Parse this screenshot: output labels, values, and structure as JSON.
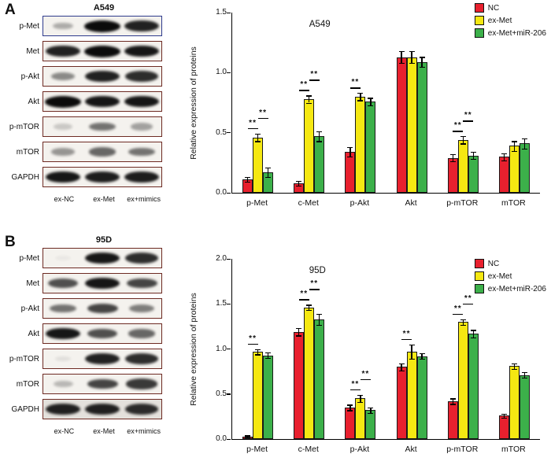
{
  "figure": {
    "panels": [
      {
        "id": "A",
        "label": "A",
        "blot_title": "A549",
        "lane_labels": [
          "ex-NC",
          "ex-Met",
          "ex+mimics"
        ],
        "blots": [
          {
            "protein": "p-Met",
            "border": "#2e3a8c",
            "bands": [
              0.3,
              1.0,
              0.9
            ]
          },
          {
            "protein": "Met",
            "border": "#6d2a22",
            "bands": [
              0.9,
              1.0,
              0.95
            ]
          },
          {
            "protein": "p-Akt",
            "border": "#6d2a22",
            "bands": [
              0.45,
              0.9,
              0.85
            ]
          },
          {
            "protein": "Akt",
            "border": "#6d2a22",
            "bands": [
              1.0,
              0.95,
              0.95
            ]
          },
          {
            "protein": "p-mTOR",
            "border": "#6d2a22",
            "bands": [
              0.18,
              0.55,
              0.35
            ]
          },
          {
            "protein": "mTOR",
            "border": "#6d2a22",
            "bands": [
              0.4,
              0.6,
              0.55
            ]
          },
          {
            "protein": "GAPDH",
            "border": "#6d2a22",
            "bands": [
              0.95,
              0.92,
              0.92
            ]
          }
        ]
      },
      {
        "id": "B",
        "label": "B",
        "blot_title": "95D",
        "lane_labels": [
          "ex-NC",
          "ex-Met",
          "ex+mimics"
        ],
        "blots": [
          {
            "protein": "p-Met",
            "border": "#6d2a22",
            "bands": [
              0.04,
              0.95,
              0.85
            ]
          },
          {
            "protein": "Met",
            "border": "#6d2a22",
            "bands": [
              0.7,
              0.95,
              0.75
            ]
          },
          {
            "protein": "p-Akt",
            "border": "#6d2a22",
            "bands": [
              0.55,
              0.75,
              0.5
            ]
          },
          {
            "protein": "Akt",
            "border": "#6d2a22",
            "bands": [
              0.95,
              0.7,
              0.6
            ]
          },
          {
            "protein": "p-mTOR",
            "border": "#6d2a22",
            "bands": [
              0.08,
              0.9,
              0.85
            ]
          },
          {
            "protein": "mTOR",
            "border": "#6d2a22",
            "bands": [
              0.25,
              0.75,
              0.8
            ]
          },
          {
            "protein": "GAPDH",
            "border": "#6d2a22",
            "bg": "#e4e1dc",
            "bands": [
              0.9,
              0.9,
              0.85
            ]
          }
        ]
      }
    ]
  },
  "chart_data": [
    {
      "type": "bar",
      "title": "A549",
      "xlabel": "",
      "ylabel": "Relative expression of proteins",
      "ylim": [
        0,
        1.5
      ],
      "yticks": [
        0.0,
        0.5,
        1.0,
        1.5
      ],
      "grid": false,
      "legend_position": "top-right",
      "categories": [
        "p-Met",
        "c-Met",
        "p-Akt",
        "Akt",
        "p-mTOR",
        "mTOR"
      ],
      "series": [
        {
          "name": "NC",
          "color": "#e8202e",
          "values": [
            0.11,
            0.08,
            0.34,
            1.13,
            0.29,
            0.3
          ],
          "errors": [
            0.02,
            0.02,
            0.04,
            0.05,
            0.03,
            0.03
          ]
        },
        {
          "name": "ex-Met",
          "color": "#f5e812",
          "values": [
            0.46,
            0.78,
            0.8,
            1.13,
            0.44,
            0.39
          ],
          "errors": [
            0.03,
            0.03,
            0.03,
            0.05,
            0.03,
            0.04
          ]
        },
        {
          "name": "ex-Met+miR-206",
          "color": "#3cb04a",
          "values": [
            0.17,
            0.47,
            0.76,
            1.09,
            0.31,
            0.41
          ],
          "errors": [
            0.04,
            0.04,
            0.03,
            0.04,
            0.03,
            0.04
          ]
        }
      ],
      "significance": [
        {
          "category": 0,
          "pair": [
            0,
            1
          ],
          "label": "**"
        },
        {
          "category": 0,
          "pair": [
            1,
            2
          ],
          "label": "**"
        },
        {
          "category": 1,
          "pair": [
            0,
            1
          ],
          "label": "**"
        },
        {
          "category": 1,
          "pair": [
            1,
            2
          ],
          "label": "**"
        },
        {
          "category": 2,
          "pair": [
            0,
            1
          ],
          "label": "**"
        },
        {
          "category": 4,
          "pair": [
            0,
            1
          ],
          "label": "**"
        },
        {
          "category": 4,
          "pair": [
            1,
            2
          ],
          "label": "**"
        }
      ]
    },
    {
      "type": "bar",
      "title": "95D",
      "xlabel": "",
      "ylabel": "Relative expression of proteins",
      "ylim": [
        0,
        2.0
      ],
      "yticks": [
        0.0,
        0.5,
        1.0,
        1.5,
        2.0
      ],
      "grid": false,
      "legend_position": "top-right",
      "categories": [
        "p-Met",
        "c-Met",
        "p-Akt",
        "Akt",
        "p-mTOR",
        "mTOR"
      ],
      "series": [
        {
          "name": "NC",
          "color": "#e8202e",
          "values": [
            0.03,
            1.19,
            0.35,
            0.8,
            0.42,
            0.26
          ],
          "errors": [
            0.01,
            0.04,
            0.03,
            0.04,
            0.03,
            0.02
          ]
        },
        {
          "name": "ex-Met",
          "color": "#f5e812",
          "values": [
            0.97,
            1.46,
            0.45,
            0.97,
            1.3,
            0.81
          ],
          "errors": [
            0.03,
            0.03,
            0.04,
            0.08,
            0.03,
            0.03
          ]
        },
        {
          "name": "ex-Met+miR-206",
          "color": "#3cb04a",
          "values": [
            0.93,
            1.33,
            0.32,
            0.92,
            1.17,
            0.71
          ],
          "errors": [
            0.03,
            0.06,
            0.03,
            0.03,
            0.04,
            0.03
          ]
        }
      ],
      "significance": [
        {
          "category": 0,
          "pair": [
            0,
            1
          ],
          "label": "**"
        },
        {
          "category": 1,
          "pair": [
            0,
            1
          ],
          "label": "**"
        },
        {
          "category": 1,
          "pair": [
            1,
            2
          ],
          "label": "**"
        },
        {
          "category": 2,
          "pair": [
            0,
            1
          ],
          "label": "**"
        },
        {
          "category": 2,
          "pair": [
            1,
            2
          ],
          "label": "**"
        },
        {
          "category": 3,
          "pair": [
            0,
            1
          ],
          "label": "**"
        },
        {
          "category": 4,
          "pair": [
            0,
            1
          ],
          "label": "**"
        },
        {
          "category": 4,
          "pair": [
            1,
            2
          ],
          "label": "**"
        }
      ]
    }
  ]
}
